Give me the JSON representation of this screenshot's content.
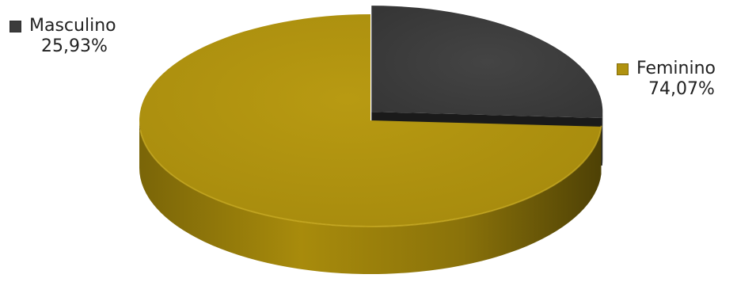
{
  "chart_data": {
    "type": "pie",
    "title": "",
    "legend": "labels beside slices",
    "slices": [
      {
        "name": "Masculino",
        "value": 25.93,
        "value_label": "25,93%",
        "color": "#3c3c3c"
      },
      {
        "name": "Feminino",
        "value": 74.07,
        "value_label": "74,07%",
        "color": "#b0920f"
      }
    ]
  }
}
